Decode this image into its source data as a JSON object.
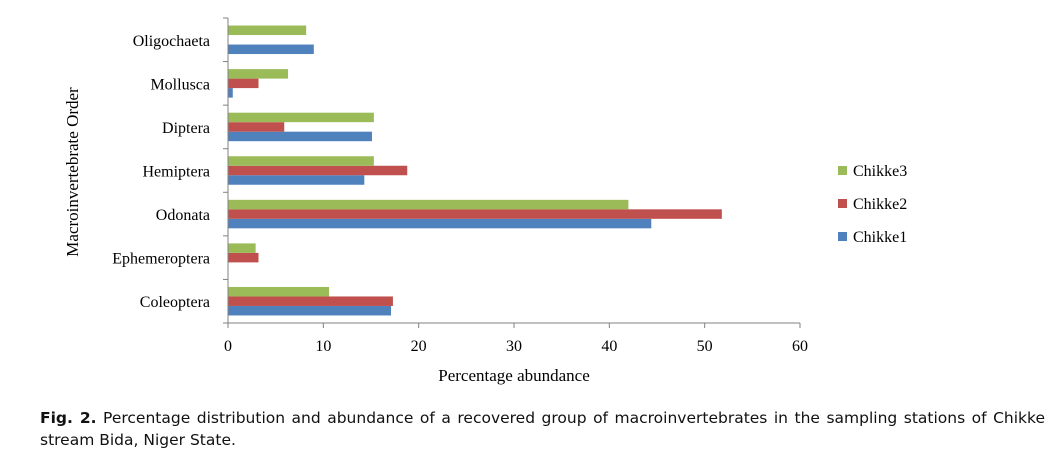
{
  "chart_data": {
    "type": "bar",
    "orientation": "horizontal",
    "categories": [
      "Coleoptera",
      "Ephemeroptera",
      "Odonata",
      "Hemiptera",
      "Diptera",
      "Mollusca",
      "Oligochaeta"
    ],
    "series": [
      {
        "name": "Chikke1",
        "color": "#4F81BD",
        "values": [
          17.1,
          0,
          44.4,
          14.3,
          15.1,
          0.5,
          9.0
        ]
      },
      {
        "name": "Chikke2",
        "color": "#C0504D",
        "values": [
          17.3,
          3.2,
          51.8,
          18.8,
          5.9,
          3.2,
          0
        ]
      },
      {
        "name": "Chikke3",
        "color": "#9BBB59",
        "values": [
          10.6,
          2.9,
          42.0,
          15.3,
          15.3,
          6.3,
          8.2
        ]
      }
    ],
    "xlabel": "Percentage abundance",
    "ylabel": "Macroinvertebrate Order",
    "xlim": [
      0,
      60
    ],
    "xticks": [
      0,
      10,
      20,
      30,
      40,
      50,
      60
    ],
    "legend_position": "right",
    "grid": false
  },
  "caption": {
    "label": "Fig. 2.",
    "text": " Percentage distribution and abundance of a recovered group of macroinvertebrates in the sampling stations of Chikke stream Bida, Niger State."
  }
}
